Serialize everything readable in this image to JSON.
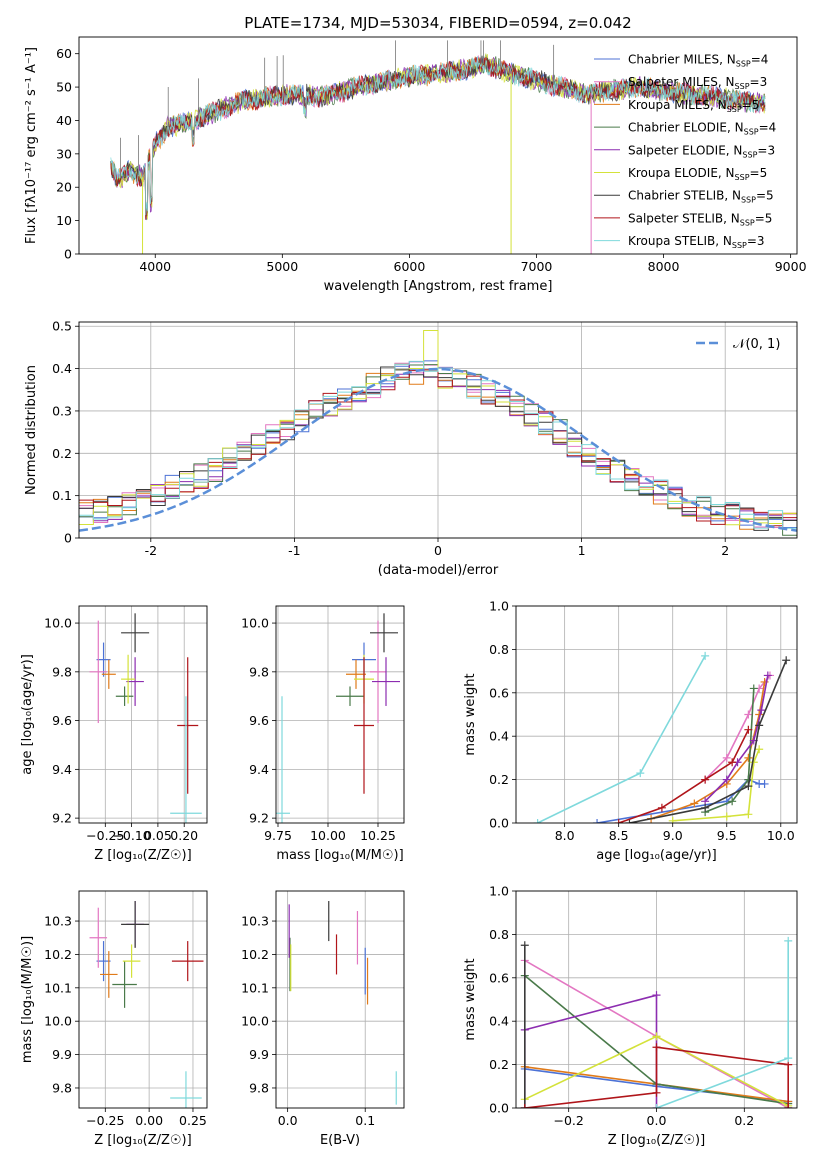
{
  "page_title": "PLATE=1734, MJD=53034, FIBERID=0594, z=0.042",
  "colors": {
    "Chabrier MILES": "#4c72d6",
    "Salpeter MILES": "#e377c2",
    "Kroupa MILES": "#e07b1a",
    "Chabrier ELODIE": "#4a7a4a",
    "Salpeter ELODIE": "#8c2db0",
    "Kroupa ELODIE": "#d4e23a",
    "Chabrier STELIB": "#3a3a3a",
    "Salpeter STELIB": "#b0151a",
    "Kroupa STELIB": "#7fd9dc",
    "gaussian": "#5b8fd8"
  },
  "chart_data": [
    {
      "id": "spectrum",
      "type": "line",
      "title": "PLATE=1734, MJD=53034, FIBERID=0594, z=0.042",
      "xlabel": "wavelength [Angstrom, rest frame]",
      "ylabel": "Flux [fλ10⁻¹⁷ erg cm⁻² s⁻¹ A⁻¹]",
      "xlim": [
        3400,
        9050
      ],
      "ylim": [
        0,
        65
      ],
      "xticks": [
        4000,
        5000,
        6000,
        7000,
        8000,
        9000
      ],
      "yticks": [
        0,
        10,
        20,
        30,
        40,
        50,
        60
      ],
      "grid": false,
      "legend_position": "upper right",
      "x": [
        3650,
        3700,
        3800,
        3900,
        4000,
        4100,
        4300,
        4500,
        4700,
        4900,
        5100,
        5300,
        5600,
        5800,
        6000,
        6200,
        6400,
        6600,
        6800,
        7000,
        7200,
        7400,
        7600,
        7800,
        8000,
        8200,
        8400,
        8600,
        8800
      ],
      "y": [
        27,
        22,
        25,
        23,
        33,
        38,
        40,
        43,
        46,
        47,
        48,
        47,
        50,
        52,
        53,
        54,
        55,
        57,
        54,
        52,
        50,
        48,
        49,
        50,
        49,
        48,
        47,
        46,
        45
      ],
      "series": [
        {
          "name": "Chabrier MILES, N_SSP=4",
          "legend": "Chabrier MILES, N",
          "sub": "SSP",
          "suffix": "=4"
        },
        {
          "name": "Salpeter MILES, N_SSP=3",
          "legend": "Salpeter MILES, N",
          "sub": "SSP",
          "suffix": "=3"
        },
        {
          "name": "Kroupa MILES, N_SSP=5",
          "legend": "Kroupa MILES, N",
          "sub": "SSP",
          "suffix": "=5"
        },
        {
          "name": "Chabrier ELODIE, N_SSP=4",
          "legend": "Chabrier ELODIE, N",
          "sub": "SSP",
          "suffix": "=4"
        },
        {
          "name": "Salpeter ELODIE, N_SSP=3",
          "legend": "Salpeter ELODIE, N",
          "sub": "SSP",
          "suffix": "=3"
        },
        {
          "name": "Kroupa ELODIE, N_SSP=5",
          "legend": "Kroupa ELODIE, N",
          "sub": "SSP",
          "suffix": "=5"
        },
        {
          "name": "Chabrier STELIB, N_SSP=5",
          "legend": "Chabrier STELIB, N",
          "sub": "SSP",
          "suffix": "=5"
        },
        {
          "name": "Salpeter STELIB, N_SSP=5",
          "legend": "Salpeter STELIB, N",
          "sub": "SSP",
          "suffix": "=5"
        },
        {
          "name": "Kroupa STELIB, N_SSP=3",
          "legend": "Kroupa STELIB, N",
          "sub": "SSP",
          "suffix": "=3"
        }
      ]
    },
    {
      "id": "residuals",
      "type": "line",
      "xlabel": "(data-model)/error",
      "ylabel": "Normed distribution",
      "xlim": [
        -2.5,
        2.5
      ],
      "ylim": [
        0,
        0.51
      ],
      "xticks": [
        -2,
        -1,
        0,
        1,
        2
      ],
      "yticks": [
        0.0,
        0.1,
        0.2,
        0.3,
        0.4,
        0.5
      ],
      "grid": true,
      "legend_position": "upper right",
      "gaussian_label": "𝒩(0, 1)",
      "bin_width": 0.1,
      "bin_centers": [
        -2.45,
        -2.35,
        -2.25,
        -2.15,
        -2.05,
        -1.95,
        -1.85,
        -1.75,
        -1.65,
        -1.55,
        -1.45,
        -1.35,
        -1.25,
        -1.15,
        -1.05,
        -0.95,
        -0.85,
        -0.75,
        -0.65,
        -0.55,
        -0.45,
        -0.35,
        -0.25,
        -0.15,
        -0.05,
        0.05,
        0.15,
        0.25,
        0.35,
        0.45,
        0.55,
        0.65,
        0.75,
        0.85,
        0.95,
        1.05,
        1.15,
        1.25,
        1.35,
        1.45,
        1.55,
        1.65,
        1.75,
        1.85,
        1.95,
        2.05,
        2.15,
        2.25,
        2.35,
        2.45
      ],
      "base_values": [
        0.06,
        0.065,
        0.07,
        0.08,
        0.09,
        0.1,
        0.12,
        0.13,
        0.145,
        0.16,
        0.185,
        0.2,
        0.22,
        0.24,
        0.26,
        0.28,
        0.3,
        0.315,
        0.33,
        0.345,
        0.36,
        0.375,
        0.385,
        0.39,
        0.4,
        0.38,
        0.37,
        0.36,
        0.345,
        0.33,
        0.31,
        0.29,
        0.27,
        0.25,
        0.22,
        0.2,
        0.18,
        0.16,
        0.14,
        0.125,
        0.11,
        0.095,
        0.08,
        0.07,
        0.06,
        0.055,
        0.05,
        0.045,
        0.04,
        0.035
      ]
    },
    {
      "id": "age_vs_Z",
      "type": "scatter",
      "xlabel": "Z [log₁₀(Z/Z☉)]",
      "ylabel": "age  [log₁₀(age/yr)]",
      "xlim": [
        -0.4,
        0.33
      ],
      "ylim": [
        9.18,
        10.07
      ],
      "xticks": [
        -0.25,
        -0.1,
        0.05,
        0.2
      ],
      "xticklabels": [
        "−0.25",
        "−0.10",
        "0.05",
        "0.20"
      ],
      "yticks": [
        9.2,
        9.4,
        9.6,
        9.8,
        10.0
      ],
      "yticklabels": [
        "9.2",
        "9.4",
        "9.6",
        "9.8",
        "10.0"
      ],
      "grid": true,
      "points": [
        {
          "x": -0.26,
          "y": 9.85,
          "xerr": 0.04,
          "yerr": 0.07
        },
        {
          "x": -0.29,
          "y": 9.8,
          "xerr": 0.05,
          "yerr": 0.21
        },
        {
          "x": -0.23,
          "y": 9.79,
          "xerr": 0.04,
          "yerr": 0.06
        },
        {
          "x": -0.14,
          "y": 9.7,
          "xerr": 0.05,
          "yerr": 0.04
        },
        {
          "x": -0.08,
          "y": 9.76,
          "xerr": 0.05,
          "yerr": 0.1
        },
        {
          "x": -0.12,
          "y": 9.77,
          "xerr": 0.04,
          "yerr": 0.1
        },
        {
          "x": -0.08,
          "y": 9.96,
          "xerr": 0.08,
          "yerr": 0.08
        },
        {
          "x": 0.22,
          "y": 9.58,
          "xerr": 0.06,
          "yerr": 0.28
        },
        {
          "x": 0.21,
          "y": 9.22,
          "xerr": 0.09,
          "yerr": 0.48
        }
      ]
    },
    {
      "id": "age_vs_mass",
      "type": "scatter",
      "xlabel": "mass [log₁₀(M/M☉)]",
      "ylabel": "",
      "xlim": [
        9.74,
        10.38
      ],
      "ylim": [
        9.18,
        10.07
      ],
      "xticks": [
        9.75,
        10.0,
        10.25
      ],
      "xticklabels": [
        "9.75",
        "10.00",
        "10.25"
      ],
      "yticks": [
        9.2,
        9.4,
        9.6,
        9.8,
        10.0
      ],
      "yticklabels": [
        "9.2",
        "9.4",
        "9.6",
        "9.8",
        "10.0"
      ],
      "grid": true,
      "points": [
        {
          "x": 10.18,
          "y": 9.85,
          "xerr": 0.06,
          "yerr": 0.07
        },
        {
          "x": 10.25,
          "y": 9.8,
          "xerr": 0.04,
          "yerr": 0.21
        },
        {
          "x": 10.14,
          "y": 9.79,
          "xerr": 0.05,
          "yerr": 0.06
        },
        {
          "x": 10.11,
          "y": 9.7,
          "xerr": 0.07,
          "yerr": 0.04
        },
        {
          "x": 10.29,
          "y": 9.76,
          "xerr": 0.07,
          "yerr": 0.1
        },
        {
          "x": 10.18,
          "y": 9.77,
          "xerr": 0.05,
          "yerr": 0.1
        },
        {
          "x": 10.28,
          "y": 9.96,
          "xerr": 0.07,
          "yerr": 0.08
        },
        {
          "x": 10.18,
          "y": 9.58,
          "xerr": 0.05,
          "yerr": 0.28
        },
        {
          "x": 9.77,
          "y": 9.22,
          "xerr": 0.04,
          "yerr": 0.48
        }
      ]
    },
    {
      "id": "mass_weight_vs_age",
      "type": "line",
      "xlabel": "age  [log₁₀(age/yr)]",
      "ylabel": "mass weight",
      "xlim": [
        7.55,
        10.15
      ],
      "ylim": [
        0,
        1
      ],
      "xticks": [
        8.0,
        8.5,
        9.0,
        9.5,
        10.0
      ],
      "xticklabels": [
        "8.0",
        "8.5",
        "9.0",
        "9.5",
        "10.0"
      ],
      "yticks": [
        0.0,
        0.2,
        0.4,
        0.6,
        0.8,
        1.0
      ],
      "yticklabels": [
        "0.0",
        "0.2",
        "0.4",
        "0.6",
        "0.8",
        "1.0"
      ],
      "grid": true,
      "series": [
        {
          "x": [
            8.3,
            9.5,
            9.7,
            9.8,
            9.85
          ],
          "y": [
            0.0,
            0.1,
            0.2,
            0.18,
            0.18
          ]
        },
        {
          "x": [
            9.3,
            9.5,
            9.7,
            9.8,
            9.9
          ],
          "y": [
            0.2,
            0.3,
            0.5,
            0.62,
            0.68
          ]
        },
        {
          "x": [
            8.8,
            9.2,
            9.5,
            9.7,
            9.8,
            9.85
          ],
          "y": [
            0.02,
            0.09,
            0.18,
            0.3,
            0.5,
            0.65
          ]
        },
        {
          "x": [
            9.3,
            9.55,
            9.7,
            9.75
          ],
          "y": [
            0.05,
            0.1,
            0.2,
            0.62
          ]
        },
        {
          "x": [
            9.3,
            9.5,
            9.6,
            9.75,
            9.82,
            9.88
          ],
          "y": [
            0.1,
            0.2,
            0.28,
            0.38,
            0.52,
            0.68
          ]
        },
        {
          "x": [
            9.0,
            9.5,
            9.7,
            9.75,
            9.8
          ],
          "y": [
            0.01,
            0.03,
            0.04,
            0.28,
            0.34
          ]
        },
        {
          "x": [
            8.6,
            9.3,
            9.7,
            9.8,
            10.05
          ],
          "y": [
            0.0,
            0.07,
            0.17,
            0.45,
            0.75
          ]
        },
        {
          "x": [
            8.5,
            8.9,
            9.3,
            9.55,
            9.7
          ],
          "y": [
            0.0,
            0.07,
            0.2,
            0.28,
            0.43
          ]
        },
        {
          "x": [
            7.75,
            8.7,
            9.3
          ],
          "y": [
            0.0,
            0.23,
            0.77
          ]
        }
      ]
    },
    {
      "id": "mass_vs_Z",
      "type": "scatter",
      "xlabel": "Z [log₁₀(Z/Z☉)]",
      "ylabel": "mass [log₁₀(M/M☉)]",
      "xlim": [
        -0.4,
        0.33
      ],
      "ylim": [
        9.74,
        10.39
      ],
      "xticks": [
        -0.25,
        0.0,
        0.25
      ],
      "xticklabels": [
        "−0.25",
        "0.00",
        "0.25"
      ],
      "yticks": [
        9.8,
        9.9,
        10.0,
        10.1,
        10.2,
        10.3
      ],
      "yticklabels": [
        "9.8",
        "9.9",
        "10.0",
        "10.1",
        "10.2",
        "10.3"
      ],
      "grid": true,
      "points": [
        {
          "x": -0.26,
          "y": 10.18,
          "xerr": 0.04,
          "yerr": 0.06
        },
        {
          "x": -0.29,
          "y": 10.25,
          "xerr": 0.05,
          "yerr": 0.09
        },
        {
          "x": -0.23,
          "y": 10.14,
          "xerr": 0.05,
          "yerr": 0.07
        },
        {
          "x": -0.14,
          "y": 10.11,
          "xerr": 0.07,
          "yerr": 0.07
        },
        {
          "x": -0.08,
          "y": 10.29,
          "xerr": 0.05,
          "yerr": 0.07
        },
        {
          "x": -0.1,
          "y": 10.18,
          "xerr": 0.05,
          "yerr": 0.05
        },
        {
          "x": -0.08,
          "y": 10.29,
          "xerr": 0.08,
          "yerr": 0.07
        },
        {
          "x": 0.22,
          "y": 10.18,
          "xerr": 0.09,
          "yerr": 0.06
        },
        {
          "x": 0.21,
          "y": 9.77,
          "xerr": 0.09,
          "yerr": 0.08
        }
      ]
    },
    {
      "id": "mass_vs_ebv",
      "type": "scatter",
      "xlabel": "E(B-V)",
      "ylabel": "",
      "xlim": [
        -0.015,
        0.15
      ],
      "ylim": [
        9.74,
        10.39
      ],
      "xticks": [
        0.0,
        0.1
      ],
      "xticklabels": [
        "0.0",
        "0.1"
      ],
      "yticks": [
        9.8,
        9.9,
        10.0,
        10.1,
        10.2,
        10.3
      ],
      "yticklabels": [
        "9.8",
        "9.9",
        "10.0",
        "10.1",
        "10.2",
        "10.3"
      ],
      "grid": true,
      "points": [
        {
          "x": 0.1,
          "y": 10.15,
          "xerr": 0,
          "yerr": 0.07
        },
        {
          "x": 0.09,
          "y": 10.25,
          "xerr": 0,
          "yerr": 0.08
        },
        {
          "x": 0.103,
          "y": 10.12,
          "xerr": 0,
          "yerr": 0.07
        },
        {
          "x": 0.003,
          "y": 10.17,
          "xerr": 0,
          "yerr": 0.08
        },
        {
          "x": 0.002,
          "y": 10.27,
          "xerr": 0,
          "yerr": 0.08
        },
        {
          "x": 0.004,
          "y": 10.16,
          "xerr": 0,
          "yerr": 0.07
        },
        {
          "x": 0.053,
          "y": 10.3,
          "xerr": 0,
          "yerr": 0.06
        },
        {
          "x": 0.063,
          "y": 10.2,
          "xerr": 0,
          "yerr": 0.06
        },
        {
          "x": 0.14,
          "y": 9.8,
          "xerr": 0,
          "yerr": 0.05
        }
      ]
    },
    {
      "id": "mass_weight_vs_Z",
      "type": "line",
      "xlabel": "Z [log₁₀(Z/Z☉)]",
      "ylabel": "mass weight",
      "xlim": [
        -0.32,
        0.32
      ],
      "ylim": [
        0,
        1
      ],
      "xticks": [
        -0.2,
        0.0,
        0.2
      ],
      "xticklabels": [
        "−0.2",
        "0.0",
        "0.2"
      ],
      "yticks": [
        0.0,
        0.2,
        0.4,
        0.6,
        0.8,
        1.0
      ],
      "yticklabels": [
        "0.0",
        "0.2",
        "0.4",
        "0.6",
        "0.8",
        "1.0"
      ],
      "grid": true,
      "series": [
        {
          "x": [
            -0.3,
            0.0,
            0.3,
            0.3
          ],
          "y": [
            0.18,
            0.1,
            0.03,
            0.0
          ]
        },
        {
          "x": [
            -0.3,
            0.0,
            0.3
          ],
          "y": [
            0.68,
            0.33,
            0.0
          ]
        },
        {
          "x": [
            -0.3,
            0.0,
            0.3
          ],
          "y": [
            0.19,
            0.11,
            0.03
          ]
        },
        {
          "x": [
            -0.3,
            0.0,
            0.3
          ],
          "y": [
            0.61,
            0.11,
            0.02
          ]
        },
        {
          "x": [
            -0.3,
            -0.3,
            0.0,
            0.0
          ],
          "y": [
            0.0,
            0.36,
            0.52,
            0.0
          ]
        },
        {
          "x": [
            -0.3,
            0.0,
            0.3
          ],
          "y": [
            0.04,
            0.33,
            0.01
          ]
        },
        {
          "x": [
            -0.3,
            -0.3
          ],
          "y": [
            0.0,
            0.75
          ]
        },
        {
          "x": [
            -0.3,
            0.0,
            0.0,
            0.3,
            0.3
          ],
          "y": [
            0.0,
            0.07,
            0.28,
            0.2,
            0.0
          ]
        },
        {
          "x": [
            0.0,
            0.3,
            0.3
          ],
          "y": [
            0.0,
            0.23,
            0.77
          ]
        }
      ]
    }
  ]
}
